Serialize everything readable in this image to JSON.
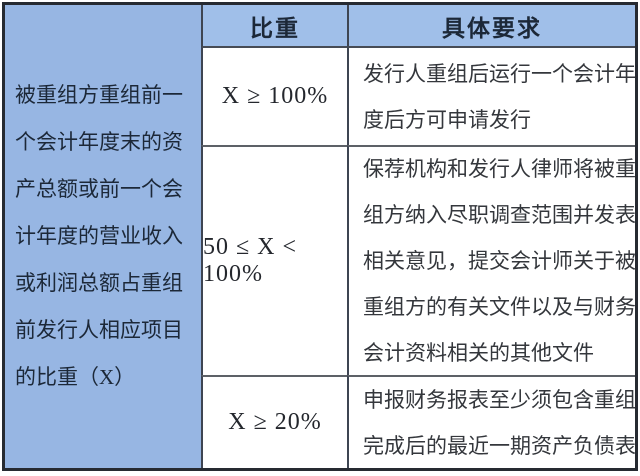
{
  "table": {
    "left_header": {
      "text": "被重组方重组前一个会计年度末的资产总额或前一个会计年度的营业收入或利润总额占重组前发行人相应项目的比重（X）",
      "lines": [
        "被重组方重组前一",
        "个会计年度末的资",
        "产总额或前一个会",
        "计年度的营业收入",
        "或利润总额占重组",
        "前发行人相应项目",
        "的比重（X）"
      ]
    },
    "columns": {
      "ratio": "比重",
      "requirement": "具体要求"
    },
    "rows": [
      {
        "ratio": "X ≥ 100%",
        "requirement": "发行人重组后运行一个会计年度后方可申请发行",
        "requirement_lines": [
          "发行人重组后运行一个会计年",
          "度后方可申请发行"
        ]
      },
      {
        "ratio": "50 ≤ X < 100%",
        "requirement": "保荐机构和发行人律师将被重组方纳入尽职调查范围并发表相关意见，提交会计师关于被重组方的有关文件以及与财务会计资料相关的其他文件",
        "requirement_lines": [
          "保荐机构和发行人律师将被重",
          "组方纳入尽职调查范围并发表",
          "相关意见，提交会计师关于被",
          "重组方的有关文件以及与财务",
          "会计资料相关的其他文件"
        ]
      },
      {
        "ratio": "X ≥ 20%",
        "requirement": "申报财务报表至少须包含重组完成后的最近一期资产负债表",
        "requirement_lines": [
          "申报财务报表至少须包含重组",
          "完成后的最近一期资产负债表"
        ]
      }
    ],
    "colors": {
      "header_bg": "#a0bfe9",
      "left_bg": "#97b6e3",
      "border_outer": "#262a31",
      "border_v": "#3e4552",
      "border_h": "#5d6167",
      "text_dark": "#1c2838",
      "text_body": "#34373c"
    }
  }
}
